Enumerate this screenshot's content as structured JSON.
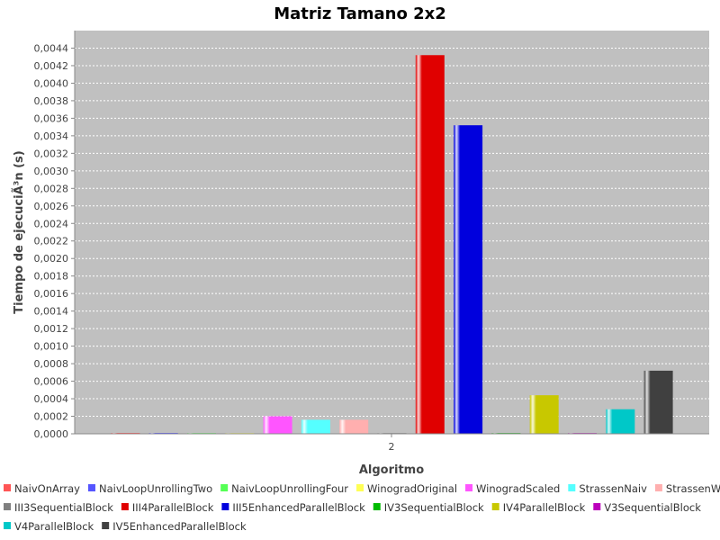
{
  "chart_data": {
    "type": "bar",
    "title": "Matriz Tamano 2x2",
    "xlabel": "Algoritmo",
    "ylabel": "Tiempo de ejecuciÃ³n (s)",
    "categories": [
      "2"
    ],
    "ylim": [
      0,
      0.0046
    ],
    "yticks": [
      "0,0000",
      "0,0002",
      "0,0004",
      "0,0006",
      "0,0008",
      "0,0010",
      "0,0012",
      "0,0014",
      "0,0016",
      "0,0018",
      "0,0020",
      "0,0022",
      "0,0024",
      "0,0026",
      "0,0028",
      "0,0030",
      "0,0032",
      "0,0034",
      "0,0036",
      "0,0038",
      "0,0040",
      "0,0042",
      "0,0044"
    ],
    "ytick_values": [
      0,
      0.0002,
      0.0004,
      0.0006,
      0.0008,
      0.001,
      0.0012,
      0.0014,
      0.0016,
      0.0018,
      0.002,
      0.0022,
      0.0024,
      0.0026,
      0.0028,
      0.003,
      0.0032,
      0.0034,
      0.0036,
      0.0038,
      0.004,
      0.0042,
      0.0044
    ],
    "grid": true,
    "legend_position": "bottom",
    "plot_background": "#c0c0c0",
    "series": [
      {
        "name": "NaivOnArray",
        "color": "#ff5555",
        "values": [
          1e-05
        ]
      },
      {
        "name": "NaivLoopUnrollingTwo",
        "color": "#5555ff",
        "values": [
          1e-05
        ]
      },
      {
        "name": "NaivLoopUnrollingFour",
        "color": "#55ff55",
        "values": [
          5e-06
        ]
      },
      {
        "name": "WinogradOriginal",
        "color": "#ffff55",
        "values": [
          5e-06
        ]
      },
      {
        "name": "WinogradScaled",
        "color": "#ff55ff",
        "values": [
          0.0002
        ]
      },
      {
        "name": "StrassenNaiv",
        "color": "#55ffff",
        "values": [
          0.00016
        ]
      },
      {
        "name": "StrassenWinograd",
        "color": "#ffafaf",
        "values": [
          0.00016
        ]
      },
      {
        "name": "III3SequentialBlock",
        "color": "#808080",
        "values": [
          3e-06
        ]
      },
      {
        "name": "III4ParallelBlock",
        "color": "#e00000",
        "values": [
          0.00432
        ]
      },
      {
        "name": "III5EnhancedParallelBlock",
        "color": "#0000dd",
        "values": [
          0.00352
        ]
      },
      {
        "name": "IV3SequentialBlock",
        "color": "#00bb00",
        "values": [
          8e-06
        ]
      },
      {
        "name": "IV4ParallelBlock",
        "color": "#c8c800",
        "values": [
          0.00044
        ]
      },
      {
        "name": "V3SequentialBlock",
        "color": "#bb00bb",
        "values": [
          8e-06
        ]
      },
      {
        "name": "V4ParallelBlock",
        "color": "#00c8c8",
        "values": [
          0.00028
        ]
      },
      {
        "name": "IV5EnhancedParallelBlock",
        "color": "#404040",
        "values": [
          0.00072
        ]
      }
    ]
  }
}
